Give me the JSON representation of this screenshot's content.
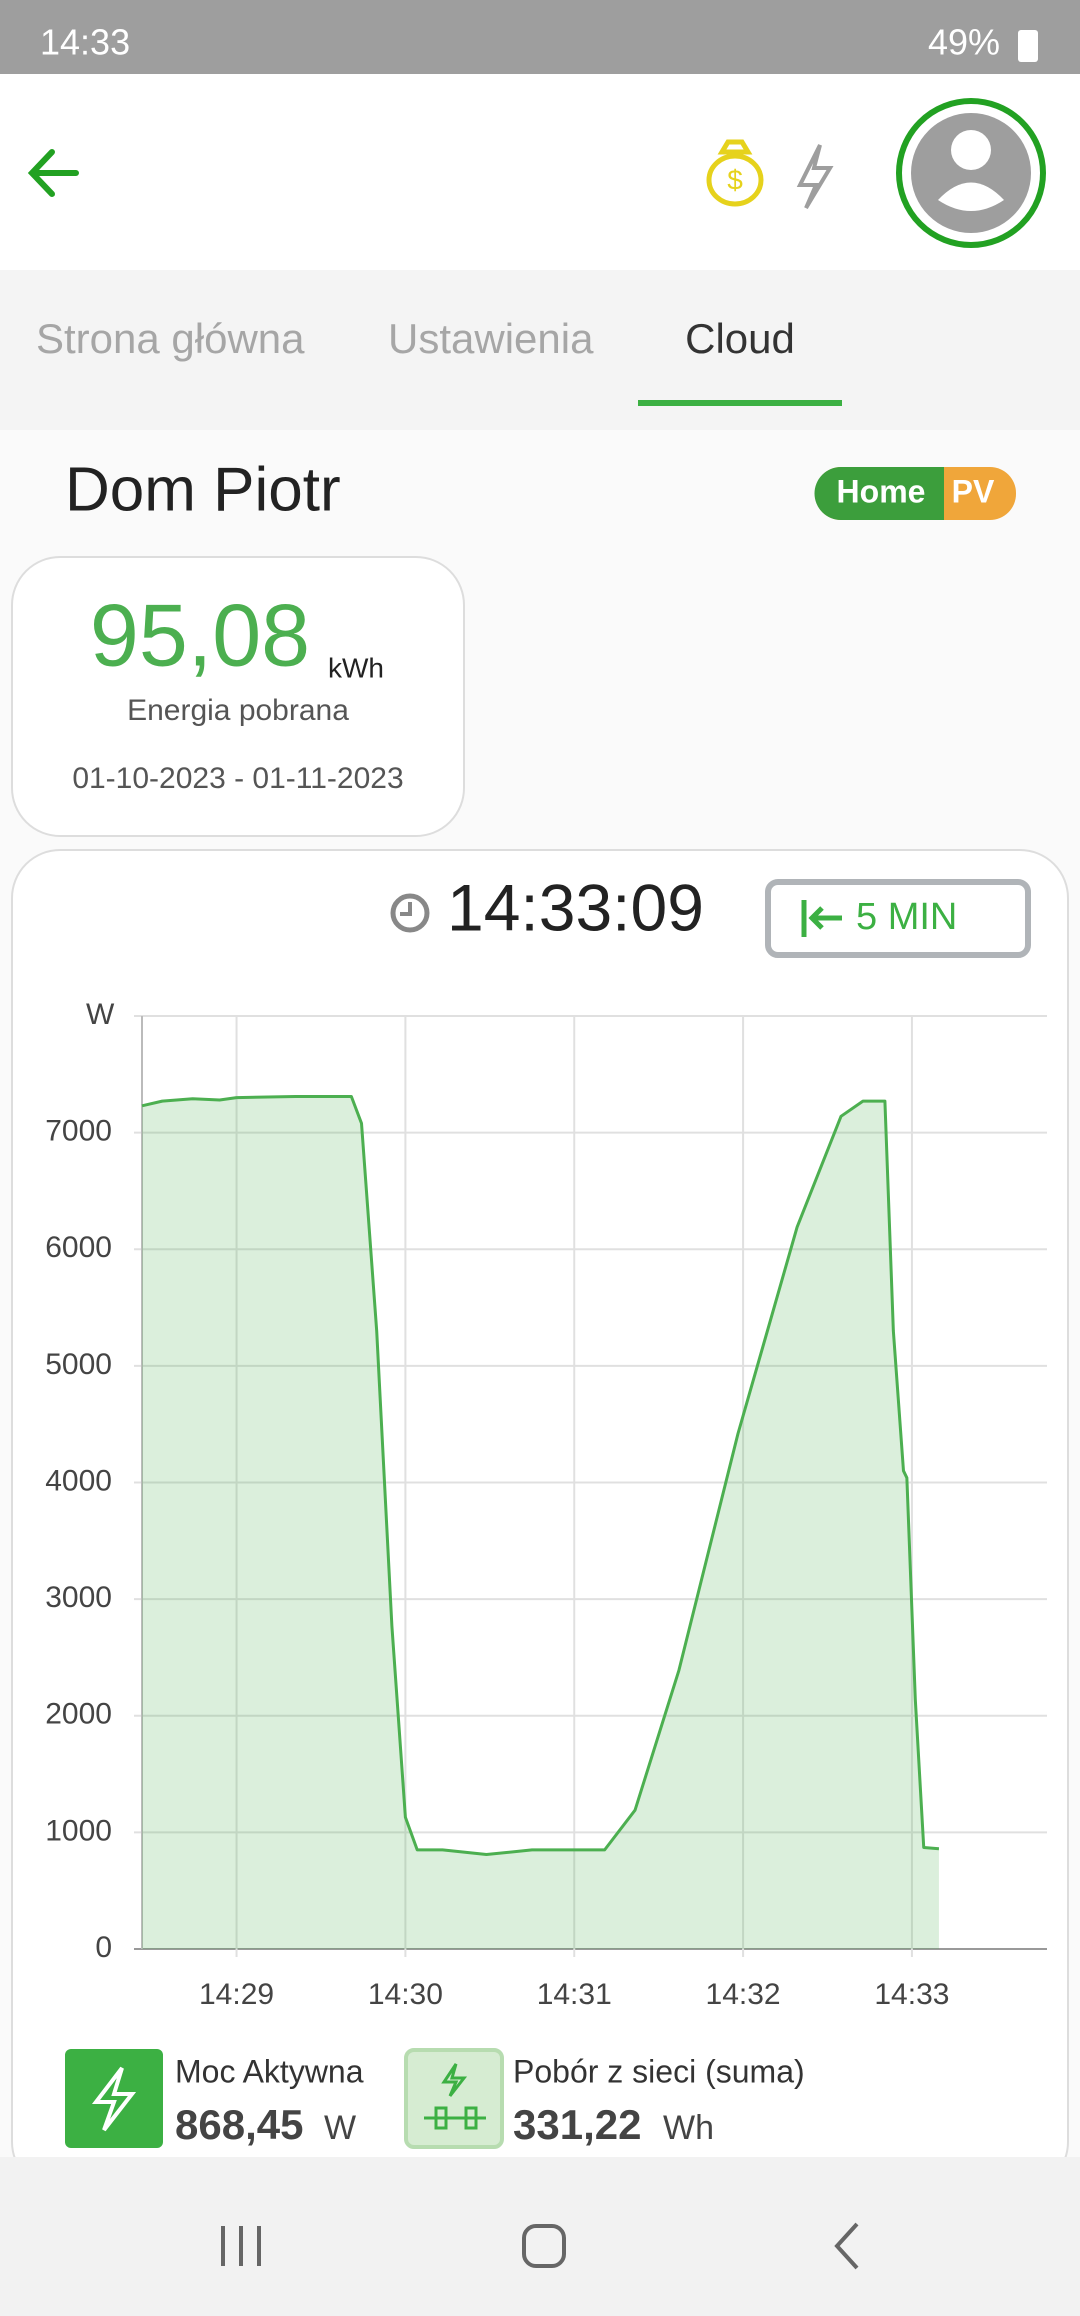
{
  "status_bar": {
    "time": "14:33",
    "battery": "49%"
  },
  "tabs": [
    "Strona główna",
    "Ustawienia",
    "Cloud"
  ],
  "site": {
    "name": "Dom Piotr",
    "badges": [
      "Home",
      "PV"
    ]
  },
  "energy_card": {
    "value": "95,08",
    "unit": "kWh",
    "label": "Energia pobrana",
    "period": "01-10-2023 - 01-11-2023"
  },
  "clock": "14:33:09",
  "range_button": "5 MIN",
  "chart_data": {
    "type": "area",
    "color": "#4caf50",
    "grid": true,
    "x": [
      868.44,
      868.56,
      868.74,
      868.9,
      869.0,
      869.35,
      869.68,
      869.74,
      869.83,
      869.92,
      870.0,
      870.07,
      870.22,
      870.48,
      870.75,
      871.18,
      871.36,
      871.62,
      871.97,
      872.32,
      872.58,
      872.71,
      872.84,
      872.89,
      872.95,
      872.97,
      873.02,
      873.07,
      873.16
    ],
    "values": [
      7230,
      7270,
      7290,
      7280,
      7300,
      7310,
      7310,
      7080,
      5300,
      2770,
      1130,
      850,
      850,
      810,
      850,
      850,
      1190,
      2390,
      4420,
      6190,
      7140,
      7270,
      7270,
      5300,
      4100,
      4040,
      2140,
      870,
      860
    ],
    "xlim": [
      868.44,
      873.8
    ],
    "xticks": [
      {
        "value": 869,
        "label": "14:29"
      },
      {
        "value": 870,
        "label": "14:30"
      },
      {
        "value": 871,
        "label": "14:31"
      },
      {
        "value": 872,
        "label": "14:32"
      },
      {
        "value": 873,
        "label": "14:33"
      }
    ],
    "ylim": [
      0,
      8000
    ],
    "yticks": [
      0,
      1000,
      2000,
      3000,
      4000,
      5000,
      6000,
      7000,
      {
        "value": 8000,
        "label": "W"
      }
    ]
  },
  "stats": [
    {
      "label": "Moc Aktywna",
      "value": "868,45",
      "unit": "W"
    },
    {
      "label": "Pobór z sieci (suma)",
      "value": "331,22",
      "unit": "Wh"
    }
  ]
}
